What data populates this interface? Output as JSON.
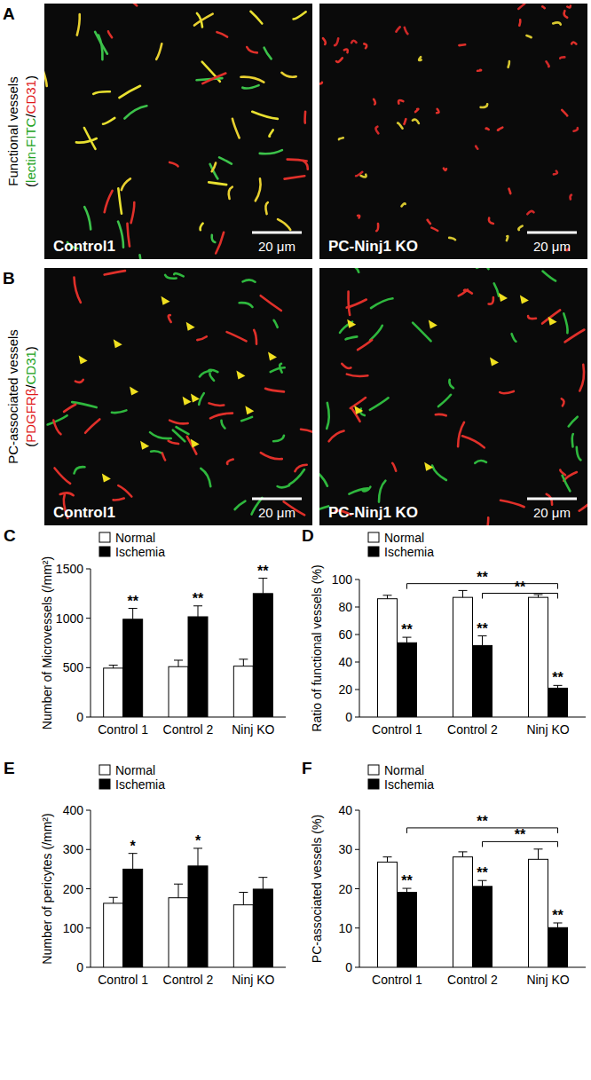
{
  "images": [
    {
      "panel": "A",
      "heading": "Functional vessels",
      "stain_label": [
        {
          "text": "(",
          "color": "#000000"
        },
        {
          "text": "lectin-FITC",
          "color": "#22a322"
        },
        {
          "text": "/",
          "color": "#000000"
        },
        {
          "text": "CD31",
          "color": "#e0191b"
        },
        {
          "text": ")",
          "color": "#000000"
        }
      ],
      "tiles": [
        {
          "label": "Control1",
          "scale_bar": "20 μm"
        },
        {
          "label": "PC-Ninj1 KO",
          "scale_bar": "20 μm"
        }
      ]
    },
    {
      "panel": "B",
      "heading": "PC-associated vessels",
      "stain_label": [
        {
          "text": "(",
          "color": "#000000"
        },
        {
          "text": "PDGFRβ",
          "color": "#e0191b"
        },
        {
          "text": "/",
          "color": "#000000"
        },
        {
          "text": "CD31",
          "color": "#22a322"
        },
        {
          "text": ")",
          "color": "#000000"
        }
      ],
      "tiles": [
        {
          "label": "Control1",
          "scale_bar": "20 μm"
        },
        {
          "label": "PC-Ninj1 KO",
          "scale_bar": "20 μm"
        }
      ]
    }
  ],
  "chart_data": [
    {
      "type": "bar",
      "annotations": [
        "C"
      ],
      "y_label": "Number of Microvessels (/mm²)",
      "categories": [
        "Control 1",
        "Control 2",
        "Ninj KO"
      ],
      "series": [
        {
          "name": "Normal",
          "color": "#ffffff",
          "values": [
            495,
            510,
            515
          ],
          "errors": [
            30,
            65,
            70
          ],
          "significance": [
            null,
            null,
            null
          ]
        },
        {
          "name": "Ischemia",
          "color": "#000000",
          "values": [
            990,
            1015,
            1250
          ],
          "errors": [
            110,
            110,
            155
          ],
          "significance": [
            "**",
            "**",
            "**"
          ]
        }
      ],
      "ylim": [
        0,
        1500
      ],
      "yticks": [
        0,
        500,
        1000,
        1500
      ],
      "legend": "upper left",
      "comparisons": []
    },
    {
      "type": "bar",
      "annotations": [
        "D"
      ],
      "y_label": "Ratio of functional vessels (%)",
      "categories": [
        "Control 1",
        "Control 2",
        "Ninj KO"
      ],
      "series": [
        {
          "name": "Normal",
          "color": "#ffffff",
          "values": [
            86,
            87,
            87
          ],
          "errors": [
            2.5,
            5,
            2
          ],
          "significance": [
            null,
            null,
            null
          ]
        },
        {
          "name": "Ischemia",
          "color": "#000000",
          "values": [
            54,
            52,
            21
          ],
          "errors": [
            4,
            7,
            2
          ],
          "significance": [
            "**",
            "**",
            "**"
          ]
        }
      ],
      "ylim": [
        0,
        100
      ],
      "yticks": [
        0,
        20,
        40,
        60,
        80,
        100
      ],
      "legend": "upper left",
      "comparisons": [
        {
          "series": "Ischemia",
          "from": "Control 1",
          "to": "Ninj KO",
          "y": 97,
          "label": "**"
        },
        {
          "series": "Ischemia",
          "from": "Control 2",
          "to": "Ninj KO",
          "y": 90,
          "label": "**"
        }
      ]
    },
    {
      "type": "bar",
      "annotations": [
        "E"
      ],
      "y_label": "Number of pericytes (/mm²)",
      "categories": [
        "Control 1",
        "Control 2",
        "Ninj KO"
      ],
      "series": [
        {
          "name": "Normal",
          "color": "#ffffff",
          "values": [
            163,
            177,
            159
          ],
          "errors": [
            15,
            35,
            32
          ],
          "significance": [
            null,
            null,
            null
          ]
        },
        {
          "name": "Ischemia",
          "color": "#000000",
          "values": [
            250,
            258,
            199
          ],
          "errors": [
            40,
            45,
            30
          ],
          "significance": [
            "*",
            "*",
            null
          ]
        }
      ],
      "ylim": [
        0,
        400
      ],
      "yticks": [
        0,
        100,
        200,
        300,
        400
      ],
      "legend": "upper left",
      "comparisons": []
    },
    {
      "type": "bar",
      "annotations": [
        "F"
      ],
      "y_label": "PC-associated vessels (%)",
      "categories": [
        "Control 1",
        "Control 2",
        "Ninj KO"
      ],
      "series": [
        {
          "name": "Normal",
          "color": "#ffffff",
          "values": [
            26.8,
            28.1,
            27.5
          ],
          "errors": [
            1.3,
            1.3,
            2.6
          ],
          "significance": [
            null,
            null,
            null
          ]
        },
        {
          "name": "Ischemia",
          "color": "#000000",
          "values": [
            19.1,
            20.6,
            10.1
          ],
          "errors": [
            1.0,
            1.5,
            1.2
          ],
          "significance": [
            "**",
            "**",
            "**"
          ]
        }
      ],
      "ylim": [
        0,
        40
      ],
      "yticks": [
        0,
        10,
        20,
        30,
        40
      ],
      "legend": "upper left",
      "comparisons": [
        {
          "series": "Ischemia",
          "from": "Control 1",
          "to": "Ninj KO",
          "y": 35.5,
          "label": "**"
        },
        {
          "series": "Ischemia",
          "from": "Control 2",
          "to": "Ninj KO",
          "y": 32,
          "label": "**"
        }
      ]
    }
  ]
}
